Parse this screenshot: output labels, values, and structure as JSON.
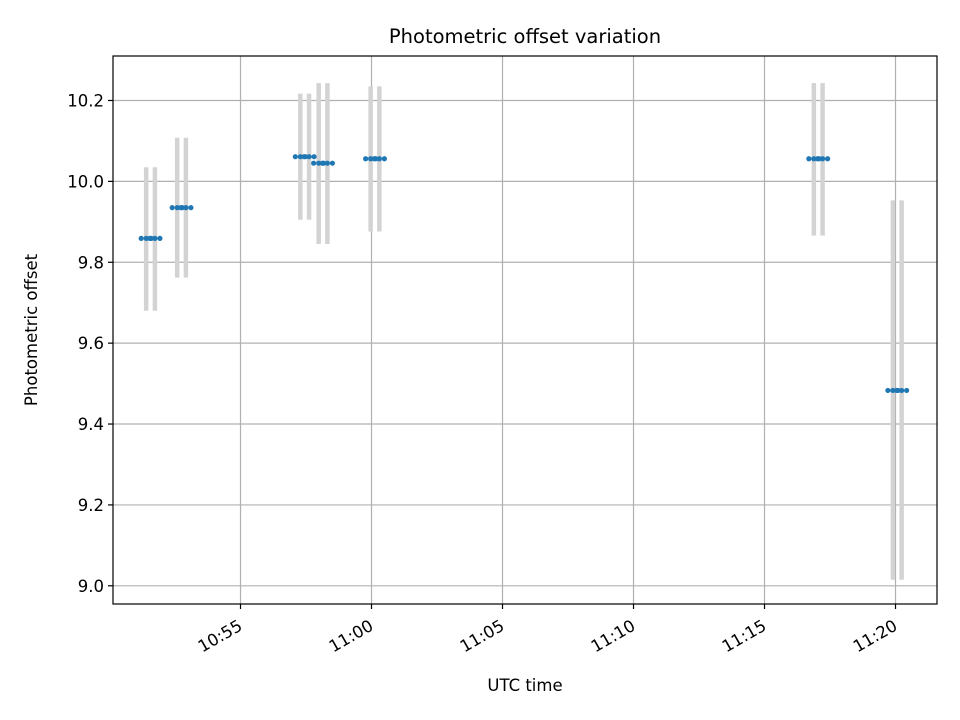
{
  "chart_data": {
    "type": "scatter",
    "title": "Photometric offset variation",
    "xlabel": "UTC time",
    "ylabel": "Photometric offset",
    "x_axis_kind": "time (HH:MM)",
    "xlim": [
      "10:50:08",
      "11:21:35"
    ],
    "ylim": [
      8.955,
      10.31
    ],
    "x_ticks": [
      "10:55",
      "11:00",
      "11:05",
      "11:10",
      "11:15",
      "11:20"
    ],
    "y_ticks": [
      "9.0",
      "9.2",
      "9.4",
      "9.6",
      "9.8",
      "10.0",
      "10.2"
    ],
    "x_tick_rotation_deg": 30,
    "grid": true,
    "legend": "none",
    "colors": {
      "points": "#1f77b4",
      "error_bars": "#d3d3d3",
      "grid": "#b0b0b0",
      "axes": "#000000"
    },
    "series": [
      {
        "points": [
          {
            "x": "10:51:24",
            "y": 9.859,
            "yerr_low": 9.68,
            "yerr_high": 10.035
          },
          {
            "x": "10:51:44",
            "y": 9.859,
            "yerr_low": 9.68,
            "yerr_high": 10.035
          },
          {
            "x": "10:52:35",
            "y": 9.935,
            "yerr_low": 9.762,
            "yerr_high": 10.108
          },
          {
            "x": "10:52:55",
            "y": 9.935,
            "yerr_low": 9.762,
            "yerr_high": 10.108
          },
          {
            "x": "10:57:17",
            "y": 10.061,
            "yerr_low": 9.905,
            "yerr_high": 10.217
          },
          {
            "x": "10:57:37",
            "y": 10.061,
            "yerr_low": 9.905,
            "yerr_high": 10.217
          },
          {
            "x": "10:57:59",
            "y": 10.045,
            "yerr_low": 9.845,
            "yerr_high": 10.243
          },
          {
            "x": "10:58:19",
            "y": 10.045,
            "yerr_low": 9.845,
            "yerr_high": 10.243
          },
          {
            "x": "10:59:58",
            "y": 10.056,
            "yerr_low": 9.876,
            "yerr_high": 10.235
          },
          {
            "x": "11:00:18",
            "y": 10.056,
            "yerr_low": 9.876,
            "yerr_high": 10.235
          },
          {
            "x": "11:16:53",
            "y": 10.056,
            "yerr_low": 9.866,
            "yerr_high": 10.243
          },
          {
            "x": "11:17:13",
            "y": 10.056,
            "yerr_low": 9.866,
            "yerr_high": 10.243
          },
          {
            "x": "11:19:54",
            "y": 9.483,
            "yerr_low": 9.015,
            "yerr_high": 9.953
          },
          {
            "x": "11:20:14",
            "y": 9.483,
            "yerr_low": 9.015,
            "yerr_high": 9.953
          }
        ]
      }
    ]
  }
}
